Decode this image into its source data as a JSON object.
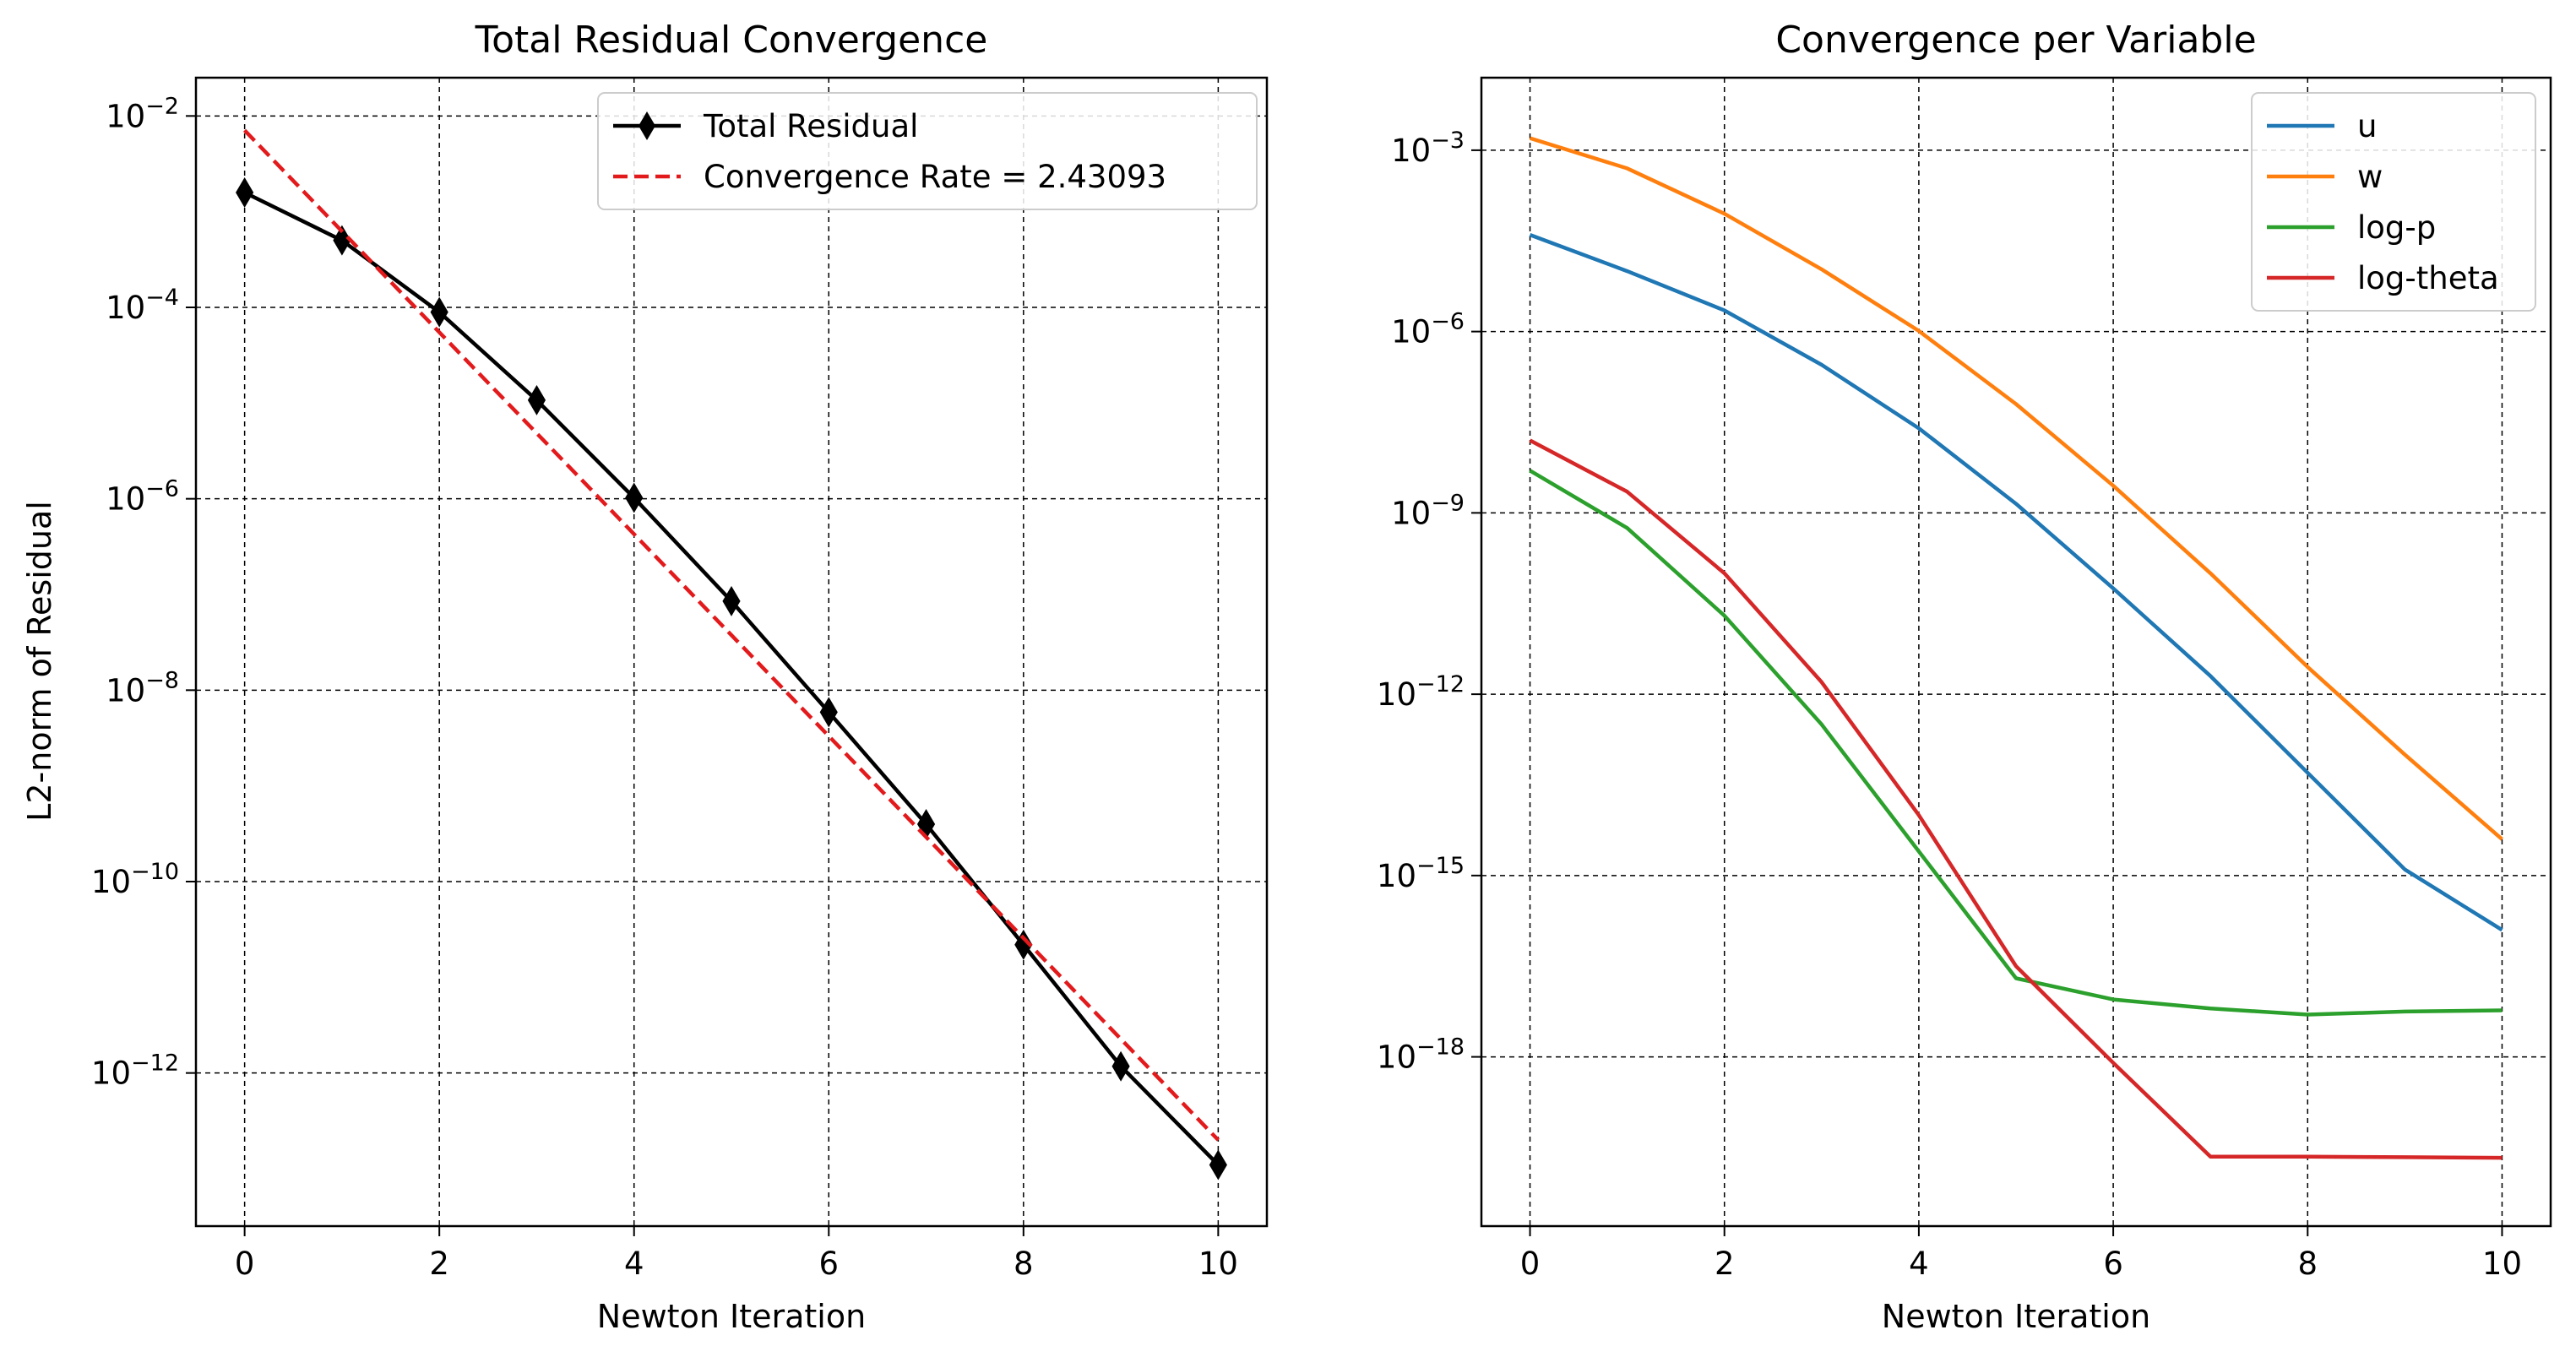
{
  "chart_data": [
    {
      "type": "line",
      "title": "Total Residual Convergence",
      "xlabel": "Newton Iteration",
      "ylabel": "L2-norm of Residual",
      "yscale": "log",
      "xlim": [
        -0.5,
        10.5
      ],
      "ylim_exp": [
        -13.6,
        -1.6
      ],
      "xticks": [
        0,
        2,
        4,
        6,
        8,
        10
      ],
      "yticks": [
        {
          "exp": -12,
          "base": "10",
          "sup": "−12"
        },
        {
          "exp": -10,
          "base": "10",
          "sup": "−10"
        },
        {
          "exp": -8,
          "base": "10",
          "sup": "−8"
        },
        {
          "exp": -6,
          "base": "10",
          "sup": "−6"
        },
        {
          "exp": -4,
          "base": "10",
          "sup": "−4"
        },
        {
          "exp": -2,
          "base": "10",
          "sup": "−2"
        }
      ],
      "grid": true,
      "legend_position": "upper-right",
      "series": [
        {
          "name": "Total Residual",
          "color": "#000000",
          "linestyle": "solid",
          "marker": "thin_diamond",
          "x": [
            0,
            1,
            2,
            3,
            4,
            5,
            6,
            7,
            8,
            9,
            10
          ],
          "y_exp": [
            -2.8,
            -3.3,
            -4.05,
            -4.97,
            -5.99,
            -7.07,
            -8.23,
            -9.4,
            -10.66,
            -11.93,
            -12.96
          ]
        },
        {
          "name": "Convergence Rate = 2.43093",
          "color": "#e31a1c",
          "linestyle": "dashed",
          "marker": "none",
          "x": [
            0,
            10
          ],
          "y_exp": [
            -2.15,
            -12.7
          ]
        }
      ]
    },
    {
      "type": "line",
      "title": "Convergence per Variable",
      "xlabel": "Newton Iteration",
      "ylabel": "",
      "yscale": "log",
      "xlim": [
        -0.5,
        10.5
      ],
      "ylim_exp": [
        -20.8,
        -1.8
      ],
      "xticks": [
        0,
        2,
        4,
        6,
        8,
        10
      ],
      "yticks": [
        {
          "exp": -18,
          "base": "10",
          "sup": "−18"
        },
        {
          "exp": -15,
          "base": "10",
          "sup": "−15"
        },
        {
          "exp": -12,
          "base": "10",
          "sup": "−12"
        },
        {
          "exp": -9,
          "base": "10",
          "sup": "−9"
        },
        {
          "exp": -6,
          "base": "10",
          "sup": "−6"
        },
        {
          "exp": -3,
          "base": "10",
          "sup": "−3"
        }
      ],
      "grid": true,
      "legend_position": "upper-right",
      "series": [
        {
          "name": "u",
          "color": "#1f77b4",
          "x": [
            0,
            1,
            2,
            3,
            4,
            5,
            6,
            7,
            8,
            9,
            10
          ],
          "y_exp": [
            -4.4,
            -5.0,
            -5.65,
            -6.55,
            -7.6,
            -8.85,
            -10.25,
            -11.7,
            -13.3,
            -14.9,
            -15.9
          ]
        },
        {
          "name": "w",
          "color": "#ff7f0e",
          "x": [
            0,
            1,
            2,
            3,
            4,
            5,
            6,
            7,
            8,
            9,
            10
          ],
          "y_exp": [
            -2.8,
            -3.3,
            -4.05,
            -4.97,
            -5.99,
            -7.2,
            -8.55,
            -10.0,
            -11.55,
            -13.0,
            -14.4
          ]
        },
        {
          "name": "log-p",
          "color": "#2ca02c",
          "x": [
            0,
            1,
            2,
            3,
            4,
            5,
            6,
            7,
            8,
            9,
            10
          ],
          "y_exp": [
            -8.3,
            -9.25,
            -10.7,
            -12.5,
            -14.6,
            -16.7,
            -17.05,
            -17.2,
            -17.3,
            -17.25,
            -17.23
          ]
        },
        {
          "name": "log-theta",
          "color": "#d62728",
          "x": [
            0,
            1,
            2,
            3,
            4,
            5,
            6,
            7,
            8,
            9,
            10
          ],
          "y_exp": [
            -7.8,
            -8.65,
            -10.0,
            -11.8,
            -14.0,
            -16.5,
            -18.1,
            -19.65,
            -19.65,
            -19.66,
            -19.67
          ]
        }
      ]
    }
  ]
}
